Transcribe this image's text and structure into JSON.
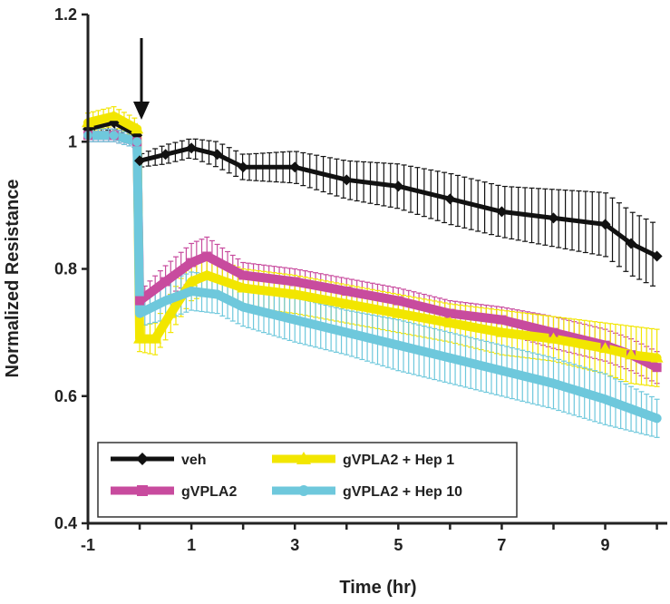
{
  "chart_data": {
    "type": "line",
    "title": "",
    "xlabel": "Time (hr)",
    "ylabel": "Normalized Resistance",
    "xlim": [
      -1,
      10.2
    ],
    "ylim": [
      0.4,
      1.2
    ],
    "xticks": [
      -1,
      1,
      3,
      5,
      7,
      9
    ],
    "yticks": [
      0.4,
      0.6,
      0.8,
      1,
      1.2
    ],
    "xtick_labels": [
      "-1",
      "1",
      "3",
      "5",
      "7",
      "9"
    ],
    "ytick_labels": [
      "0.4",
      "0.6",
      "0.8",
      "1",
      "1.2"
    ],
    "annotation": {
      "type": "arrow",
      "x": -0.1,
      "description": "treatment added"
    },
    "legend_position": "bottom-left",
    "series": [
      {
        "name": "veh",
        "color": "#111111",
        "marker": "diamond",
        "error_step": 0.13,
        "x": [
          -1,
          -0.5,
          -0.05,
          0,
          0.5,
          1,
          1.5,
          2,
          3,
          4,
          5,
          6,
          7,
          8,
          9,
          9.5,
          10
        ],
        "y": [
          1.02,
          1.03,
          1.01,
          0.97,
          0.98,
          0.99,
          0.98,
          0.96,
          0.96,
          0.94,
          0.93,
          0.91,
          0.89,
          0.88,
          0.87,
          0.84,
          0.82
        ],
        "err": [
          0.01,
          0.01,
          0.01,
          0.01,
          0.015,
          0.015,
          0.02,
          0.02,
          0.025,
          0.03,
          0.035,
          0.04,
          0.04,
          0.045,
          0.05,
          0.05,
          0.05
        ]
      },
      {
        "name": "gVPLA2",
        "color": "#c84b9e",
        "marker": "square",
        "error_step": 0.1,
        "x": [
          -1,
          -0.5,
          -0.05,
          0,
          0.5,
          1,
          1.3,
          2,
          3,
          4,
          5,
          6,
          7,
          8,
          9,
          9.5,
          10
        ],
        "y": [
          1.01,
          1.01,
          1.0,
          0.75,
          0.78,
          0.81,
          0.82,
          0.79,
          0.78,
          0.765,
          0.75,
          0.73,
          0.72,
          0.7,
          0.68,
          0.665,
          0.645
        ],
        "err": [
          0.01,
          0.01,
          0.01,
          0.015,
          0.025,
          0.03,
          0.03,
          0.02,
          0.02,
          0.02,
          0.02,
          0.02,
          0.02,
          0.025,
          0.025,
          0.025,
          0.025
        ]
      },
      {
        "name": "gVPLA2 + Hep 1",
        "color": "#f2e600",
        "marker": "triangle",
        "error_step": 0.1,
        "x": [
          -1,
          -0.5,
          -0.05,
          0,
          0.3,
          0.6,
          1,
          1.3,
          2,
          3,
          4,
          5,
          6,
          7,
          8,
          9,
          9.5,
          10
        ],
        "y": [
          1.03,
          1.04,
          1.02,
          0.69,
          0.69,
          0.73,
          0.78,
          0.79,
          0.77,
          0.76,
          0.745,
          0.73,
          0.715,
          0.7,
          0.69,
          0.675,
          0.665,
          0.66
        ],
        "err": [
          0.015,
          0.015,
          0.015,
          0.02,
          0.025,
          0.03,
          0.03,
          0.03,
          0.03,
          0.03,
          0.03,
          0.03,
          0.03,
          0.035,
          0.035,
          0.04,
          0.045,
          0.045
        ]
      },
      {
        "name": "gVPLA2 + Hep 10",
        "color": "#6ec8dc",
        "marker": "circle",
        "error_step": 0.1,
        "x": [
          -1,
          -0.5,
          -0.05,
          0,
          0.5,
          1,
          1.5,
          2,
          3,
          4,
          5,
          6,
          7,
          8,
          9,
          9.5,
          10
        ],
        "y": [
          1.01,
          1.01,
          1.0,
          0.73,
          0.75,
          0.765,
          0.76,
          0.74,
          0.72,
          0.7,
          0.68,
          0.66,
          0.64,
          0.62,
          0.595,
          0.58,
          0.565
        ],
        "err": [
          0.01,
          0.01,
          0.01,
          0.02,
          0.03,
          0.03,
          0.03,
          0.03,
          0.035,
          0.035,
          0.04,
          0.04,
          0.04,
          0.04,
          0.04,
          0.035,
          0.03
        ]
      }
    ],
    "legend": [
      "veh",
      "gVPLA2",
      "gVPLA2 + Hep 1",
      "gVPLA2 + Hep 10"
    ]
  }
}
